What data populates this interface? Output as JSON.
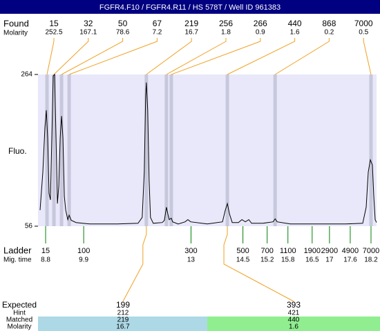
{
  "chart_data": {
    "type": "line",
    "title": "FGFR4.F10 / FGFR4.R11 / HS 578T / Well ID 961383",
    "ylabel": "Fluo.",
    "ylim": [
      56,
      264
    ],
    "yticks": [
      56,
      264
    ],
    "xlim": [
      8.58,
      18.36
    ],
    "color": "#000000",
    "found_label": "Found",
    "molarity_label": "Molarity",
    "peaks": [
      {
        "size": 15,
        "molarity": 252.5,
        "time": 8.84
      },
      {
        "size": 32,
        "molarity": 167.1,
        "time": 9.04
      },
      {
        "size": 50,
        "molarity": 78.6,
        "time": 9.26
      },
      {
        "size": 67,
        "molarity": 7.2,
        "time": 9.48
      },
      {
        "size": 219,
        "molarity": 16.7,
        "time": 11.71
      },
      {
        "size": 256,
        "molarity": 1.8,
        "time": 12.29
      },
      {
        "size": 266,
        "molarity": 0.9,
        "time": 12.43
      },
      {
        "size": 440,
        "molarity": 1.6,
        "time": 14.05
      },
      {
        "size": 868,
        "molarity": 0.2,
        "time": 15.43
      },
      {
        "size": 7000,
        "molarity": 0.5,
        "time": 18.2
      }
    ],
    "ladder_label": "Ladder",
    "mig_time_label": "Mig. time",
    "ladder": [
      {
        "size": 15,
        "time": 8.8
      },
      {
        "size": 100,
        "time": 9.9
      },
      {
        "size": 300,
        "time": 13
      },
      {
        "size": 500,
        "time": 14.5
      },
      {
        "size": 700,
        "time": 15.2
      },
      {
        "size": 1100,
        "time": 15.8
      },
      {
        "size": 1900,
        "time": 16.5
      },
      {
        "size": 2900,
        "time": 17
      },
      {
        "size": 4900,
        "time": 17.6
      },
      {
        "size": 7000,
        "time": 18.2
      }
    ],
    "x": [
      8.64,
      8.72,
      8.78,
      8.82,
      8.86,
      8.9,
      8.94,
      8.98,
      9.02,
      9.06,
      9.1,
      9.14,
      9.18,
      9.22,
      9.26,
      9.3,
      9.34,
      9.38,
      9.44,
      9.48,
      9.54,
      9.68,
      10.08,
      10.88,
      11.47,
      11.59,
      11.65,
      11.69,
      11.71,
      11.75,
      11.79,
      11.83,
      11.91,
      12.17,
      12.23,
      12.29,
      12.33,
      12.37,
      12.43,
      12.47,
      12.63,
      12.83,
      12.91,
      12.99,
      13.47,
      13.91,
      13.99,
      14.05,
      14.11,
      14.19,
      14.37,
      14.47,
      14.57,
      14.67,
      14.75,
      15.07,
      15.37,
      15.43,
      15.49,
      15.87,
      17.46,
      17.96,
      18.06,
      18.12,
      18.18,
      18.24,
      18.28,
      18.32,
      18.36
    ],
    "values": [
      78,
      130,
      191,
      215,
      177,
      101,
      92,
      177,
      262,
      264,
      177,
      87,
      111,
      177,
      207,
      177,
      97,
      78,
      65,
      71,
      64,
      61,
      59,
      59,
      60,
      68,
      130,
      234,
      253,
      215,
      120,
      68,
      60,
      61,
      64,
      82,
      73,
      65,
      67,
      62,
      59,
      62,
      65,
      62,
      59,
      62,
      78,
      87,
      73,
      61,
      61,
      65,
      62,
      65,
      60,
      60,
      62,
      66,
      62,
      59,
      59,
      60,
      82,
      130,
      147,
      140,
      97,
      65,
      61
    ],
    "expected": {
      "labels": {
        "expected": "Expected",
        "hint": "Hint",
        "matched": "Matched",
        "molarity": "Molarity"
      },
      "columns": [
        {
          "expected": 199,
          "hint": 212,
          "matched": 219,
          "molarity": 16.7,
          "peak": 4,
          "color": "#add8e6"
        },
        {
          "expected": 393,
          "hint": 421,
          "matched": 440,
          "molarity": 1.6,
          "peak": 7,
          "color": "#90ee90"
        }
      ]
    }
  }
}
